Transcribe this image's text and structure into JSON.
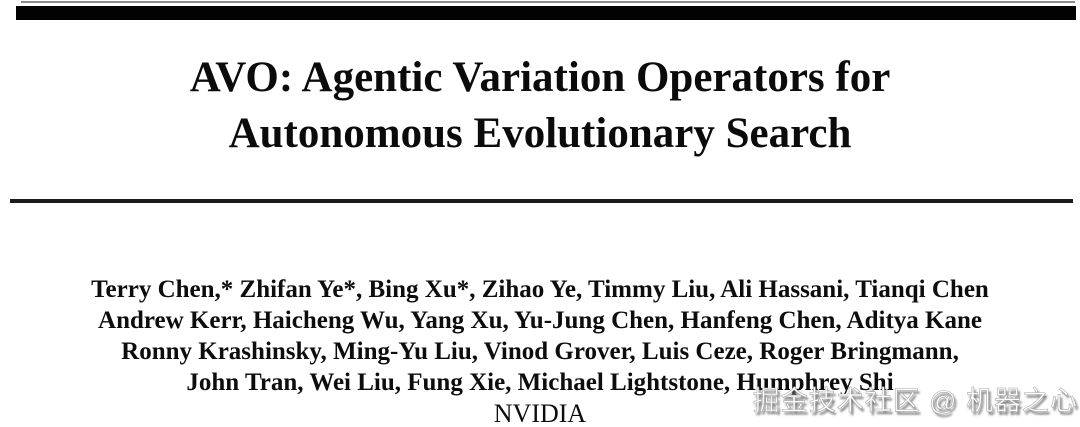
{
  "page": {
    "background": "#ffffff",
    "text_color": "#0d0d0d"
  },
  "header_rules": {
    "thin_rule_color": "#8c8c8c",
    "thick_bar_color": "#020202",
    "divider_color": "#1b1b1b"
  },
  "title": {
    "line1": "AVO: Agentic Variation Operators for",
    "line2": "Autonomous Evolutionary Search"
  },
  "authors": {
    "lines": [
      "Terry Chen,* Zhifan Ye*, Bing Xu*, Zihao Ye, Timmy Liu, Ali Hassani, Tianqi Chen",
      "Andrew Kerr, Haicheng Wu, Yang Xu, Yu-Jung Chen, Hanfeng Chen, Aditya Kane",
      "Ronny Krashinsky, Ming-Yu Liu, Vinod Grover, Luis Ceze, Roger Bringmann,",
      "John Tran, Wei Liu, Fung Xie, Michael Lightstone, Humphrey Shi"
    ],
    "affiliation": "NVIDIA"
  },
  "watermark": {
    "text": "掘金技术社区 @ 机器之心",
    "color": "#fefefe",
    "shadow_color": "#757575"
  }
}
